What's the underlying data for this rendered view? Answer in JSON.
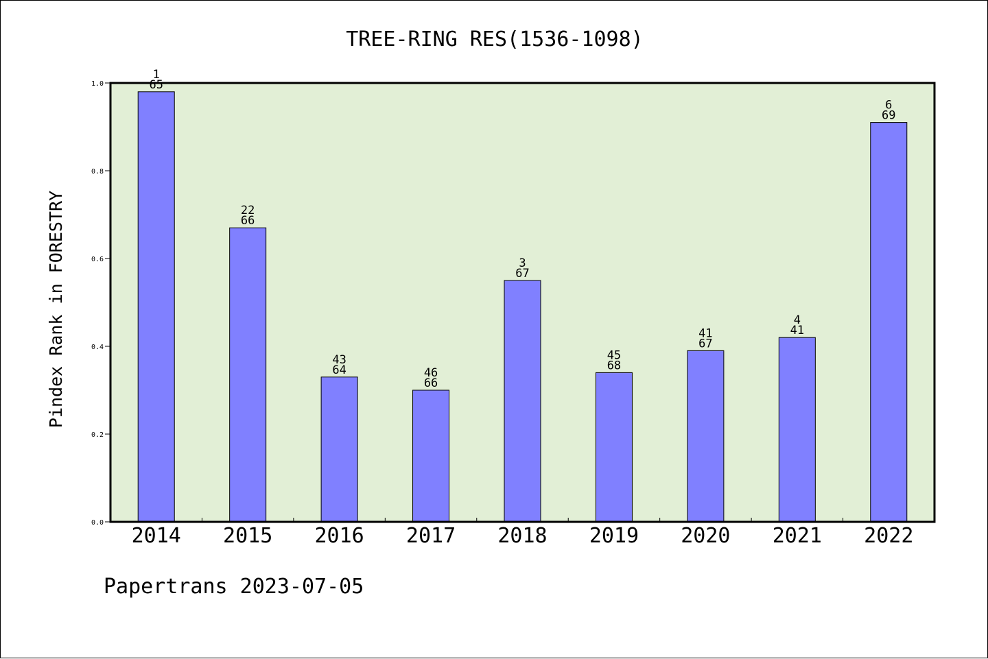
{
  "chart_data": {
    "type": "bar",
    "title": "TREE-RING RES(1536-1098)",
    "ylabel": "Pindex Rank in FORESTRY",
    "xlabel": "",
    "categories": [
      "2014",
      "2015",
      "2016",
      "2017",
      "2018",
      "2019",
      "2020",
      "2021",
      "2022"
    ],
    "values": [
      0.98,
      0.67,
      0.33,
      0.3,
      0.55,
      0.34,
      0.39,
      0.42,
      0.91
    ],
    "label_top": [
      "1",
      "22",
      "43",
      "46",
      "3",
      "45",
      "41",
      "4",
      "6"
    ],
    "label_bottom": [
      "65",
      "66",
      "64",
      "66",
      "67",
      "68",
      "67",
      "41",
      "69"
    ],
    "ylim": [
      0,
      1.0
    ],
    "yticks": [
      "0.0",
      "0.2",
      "0.4",
      "0.6",
      "0.8",
      "1.0"
    ],
    "grid": false,
    "colors": {
      "bar": "#8080ff",
      "plot_background": "#e2efd6",
      "bar_edge": "#000000"
    }
  },
  "footer": "Papertrans 2023-07-05"
}
